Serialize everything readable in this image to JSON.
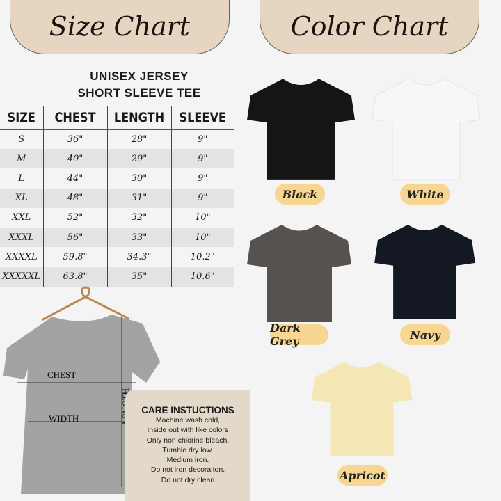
{
  "banners": {
    "size": "Size Chart",
    "color": "Color Chart"
  },
  "size_chart": {
    "title_line1": "UNISEX JERSEY",
    "title_line2": "SHORT SLEEVE TEE",
    "headers": [
      "SIZE",
      "CHEST",
      "LENGTH",
      "SLEEVE"
    ],
    "rows": [
      [
        "S",
        "36\"",
        "28\"",
        "9\""
      ],
      [
        "M",
        "40\"",
        "29\"",
        "9\""
      ],
      [
        "L",
        "44\"",
        "30\"",
        "9\""
      ],
      [
        "XL",
        "48\"",
        "31\"",
        "9\""
      ],
      [
        "XXL",
        "52\"",
        "32\"",
        "10\""
      ],
      [
        "XXXL",
        "56\"",
        "33\"",
        "10\""
      ],
      [
        "XXXXL",
        "59.8\"",
        "34.3\"",
        "10.2\""
      ],
      [
        "XXXXXL",
        "63.8\"",
        "35\"",
        "10.6\""
      ]
    ]
  },
  "diagram": {
    "chest": "CHEST",
    "width": "WIDTH",
    "length": "LENGTH"
  },
  "care": {
    "title": "CARE INSTUCTIONS",
    "lines": [
      "Machine wash cold,",
      "inside out with like colors",
      "Only non chlorine bleach.",
      "Tumble dry low.",
      "Medium iron.",
      "Do not iron decoraiton.",
      "Do not dry clean"
    ]
  },
  "colors": [
    {
      "name": "Black",
      "hex": "#151515"
    },
    {
      "name": "White",
      "hex": "#f7f7f7"
    },
    {
      "name": "Dark Grey",
      "hex": "#55524f"
    },
    {
      "name": "Navy",
      "hex": "#141822"
    },
    {
      "name": "Apricot",
      "hex": "#f4e7b5"
    }
  ],
  "accent": "#f6d690"
}
